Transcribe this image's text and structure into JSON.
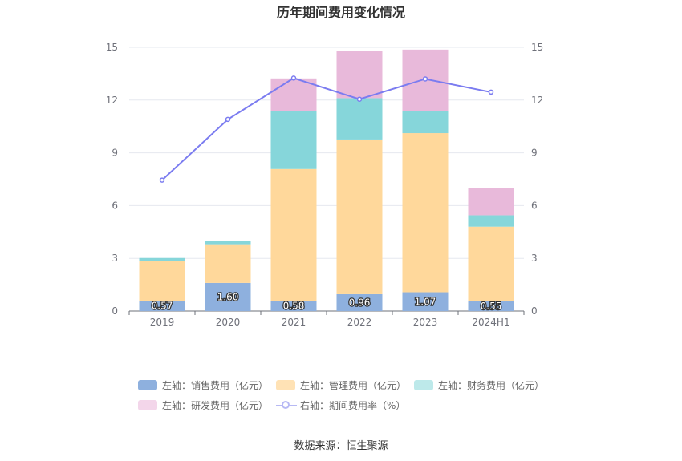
{
  "title": "历年期间费用变化情况",
  "source": "数据来源：恒生聚源",
  "legend": [
    {
      "label": "左轴：销售费用（亿元）",
      "color": "#8eb0de"
    },
    {
      "label": "左轴：管理费用（亿元）",
      "color": "#ffe2b5"
    },
    {
      "label": "左轴：财务费用（亿元）",
      "color": "#bde9ea"
    },
    {
      "label": "左轴：研发费用（亿元）",
      "color": "#f3d6ea"
    },
    {
      "label": "右轴：期间费用率（%）",
      "color": "#7b7cf0"
    }
  ],
  "chart_data": {
    "type": "bar",
    "stacked": true,
    "categories": [
      "2019",
      "2020",
      "2021",
      "2022",
      "2023",
      "2024H1"
    ],
    "series": [
      {
        "name": "左轴：销售费用（亿元）",
        "axis": "left",
        "color": "#8eb0de",
        "values": [
          0.57,
          1.6,
          0.58,
          0.96,
          1.07,
          0.55
        ],
        "labels": [
          "0.57",
          "1.60",
          "0.58",
          "0.96",
          "1.07",
          "0.55"
        ]
      },
      {
        "name": "左轴：管理费用（亿元）",
        "axis": "left",
        "color": "#ffd89b",
        "values": [
          2.3,
          2.2,
          7.5,
          8.8,
          9.05,
          4.25
        ]
      },
      {
        "name": "左轴：财务费用（亿元）",
        "axis": "left",
        "color": "#86d6da",
        "values": [
          0.15,
          0.18,
          3.3,
          2.35,
          1.25,
          0.65
        ]
      },
      {
        "name": "左轴：研发费用（亿元）",
        "axis": "left",
        "color": "#e8b9da",
        "values": [
          0.0,
          0.0,
          1.85,
          2.7,
          3.5,
          1.55
        ]
      },
      {
        "name": "右轴：期间费用率（%）",
        "axis": "right",
        "type": "line",
        "color": "#7b7cf0",
        "values": [
          7.45,
          10.9,
          13.25,
          12.05,
          13.2,
          12.45
        ]
      }
    ],
    "yleft": {
      "ylim": [
        0,
        15
      ],
      "ticks": [
        "0",
        "3",
        "6",
        "9",
        "12",
        "15"
      ]
    },
    "yright": {
      "ylim": [
        0,
        15
      ],
      "ticks": [
        "0",
        "3",
        "6",
        "9",
        "12",
        "15"
      ]
    },
    "grid": true,
    "legend_position": "bottom"
  }
}
